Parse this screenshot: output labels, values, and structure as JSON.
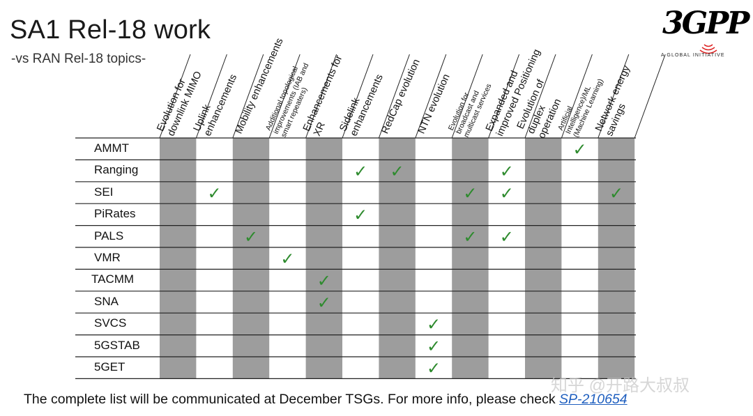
{
  "slide": {
    "title": "SA1 Rel-18 work",
    "subtitle": "-vs RAN Rel-18 topics-"
  },
  "logo": {
    "text": "3GPP",
    "tagline": "A GLOBAL INITIATIVE"
  },
  "matrix": {
    "columns": [
      {
        "lines": [
          "Evolution for",
          "downlink MIMO"
        ],
        "size": "normal"
      },
      {
        "lines": [
          "Uplink",
          "enhancements"
        ],
        "size": "normal"
      },
      {
        "lines": [
          "Mobility enhancements"
        ],
        "size": "normal"
      },
      {
        "lines": [
          "Additional topological",
          "improvements (IAB and",
          "smart repeaters)"
        ],
        "size": "small"
      },
      {
        "lines": [
          "Enhancements for",
          "XR"
        ],
        "size": "normal"
      },
      {
        "lines": [
          "Sidelink",
          "enhancements"
        ],
        "size": "normal"
      },
      {
        "lines": [
          "RedCap evolution"
        ],
        "size": "normal"
      },
      {
        "lines": [
          "NTN evolution"
        ],
        "size": "normal"
      },
      {
        "lines": [
          "Evolution for",
          "broadcast and",
          "multicast services"
        ],
        "size": "small"
      },
      {
        "lines": [
          "Expanded and",
          "improved Positioning"
        ],
        "size": "normal"
      },
      {
        "lines": [
          "Evolution of",
          "duplex",
          "operation"
        ],
        "size": "normal"
      },
      {
        "lines": [
          "Artificial",
          "Intelligence)/ML",
          "(Machine Learning)"
        ],
        "size": "small"
      },
      {
        "lines": [
          "Network energy",
          "savings"
        ],
        "size": "normal"
      }
    ],
    "shaded_columns": [
      0,
      2,
      4,
      6,
      8,
      10,
      12
    ],
    "rows": [
      {
        "label": "AMMT",
        "checks": [
          11
        ]
      },
      {
        "label": "Ranging",
        "checks": [
          5,
          6,
          9
        ]
      },
      {
        "label": "SEI",
        "checks": [
          1,
          8,
          9,
          12
        ]
      },
      {
        "label": "PiRates",
        "checks": [
          5
        ]
      },
      {
        "label": "PALS",
        "checks": [
          2,
          8,
          9
        ]
      },
      {
        "label": "VMR",
        "checks": [
          3
        ]
      },
      {
        "label": "TACMM",
        "checks": [
          4
        ]
      },
      {
        "label": "SNA",
        "checks": [
          4
        ]
      },
      {
        "label": "SVCS",
        "checks": [
          7
        ]
      },
      {
        "label": "5GSTAB",
        "checks": [
          7
        ]
      },
      {
        "label": "5GET",
        "checks": [
          7
        ]
      }
    ],
    "check_symbol": "✓",
    "colors": {
      "shade": "#9d9d9d",
      "check": "#2e8b2e",
      "grid": "#222222"
    }
  },
  "footer": {
    "text": "The complete list will be communicated at December TSGs. For more info, please check ",
    "link_text": "SP-210654"
  },
  "watermark": "知乎 @开路大叔叔"
}
